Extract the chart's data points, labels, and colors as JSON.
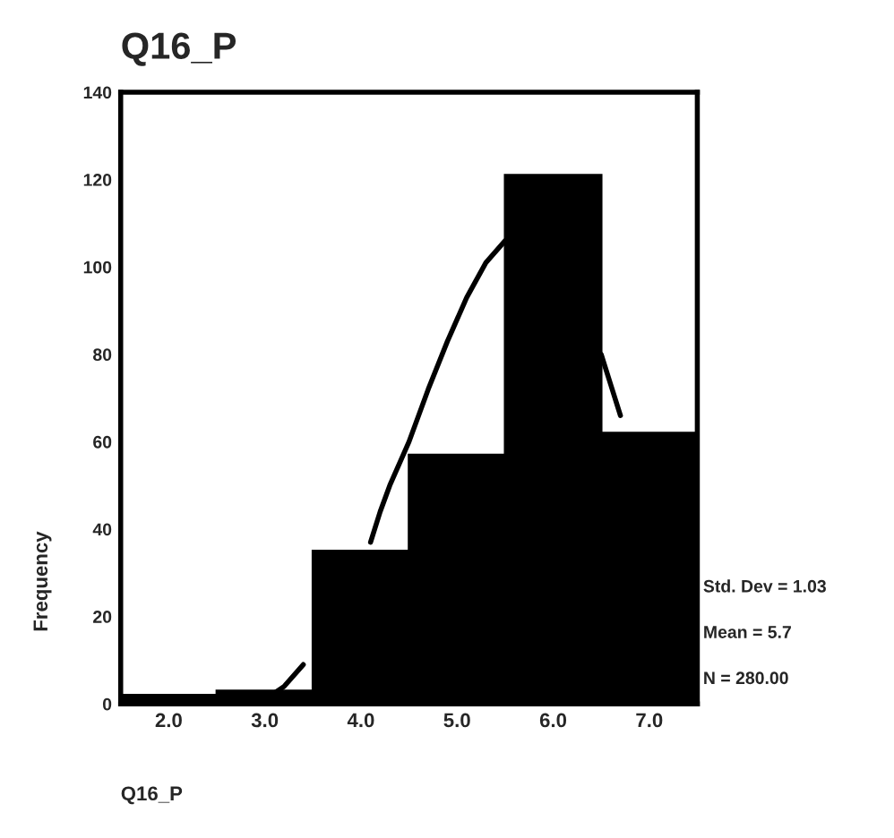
{
  "chart_data": {
    "type": "histogram",
    "title": "Q16_P",
    "xlabel": "Q16_P",
    "ylabel": "Frequency",
    "bins": [
      1.5,
      2.5,
      3.5,
      4.5,
      5.5,
      6.5,
      7.5
    ],
    "values": [
      2,
      3,
      35,
      57,
      121,
      62
    ],
    "color": "#000000",
    "series": [
      {
        "type": "line",
        "color": "#000000",
        "x": [
          1.5,
          2.0,
          2.5,
          3.0,
          3.2,
          3.4,
          3.5,
          4.1,
          4.2,
          4.3,
          4.5,
          4.7,
          4.9,
          5.1,
          5.3,
          5.5,
          6.0,
          6.5,
          6.6,
          6.7
        ],
        "values": [
          0,
          0,
          0.5,
          1,
          4,
          9,
          null,
          37,
          44,
          50,
          60,
          72,
          83,
          93,
          101,
          106,
          null,
          80,
          73,
          66
        ]
      }
    ],
    "xlim": [
      1.5,
      7.5
    ],
    "ylim": [
      0,
      140
    ],
    "xticks": [
      {
        "value": 2,
        "label": "2.0"
      },
      {
        "value": 3,
        "label": "3.0"
      },
      {
        "value": 4,
        "label": "4.0"
      },
      {
        "value": 5,
        "label": "5.0"
      },
      {
        "value": 6,
        "label": "6.0"
      },
      {
        "value": 7,
        "label": "7.0"
      }
    ],
    "yticks": [
      0,
      20,
      40,
      60,
      80,
      100,
      120,
      140
    ],
    "grid": false,
    "legend": false,
    "annotations": [
      "Std. Dev = 1.03",
      "Mean = 5.7",
      "N = 280.00"
    ]
  }
}
